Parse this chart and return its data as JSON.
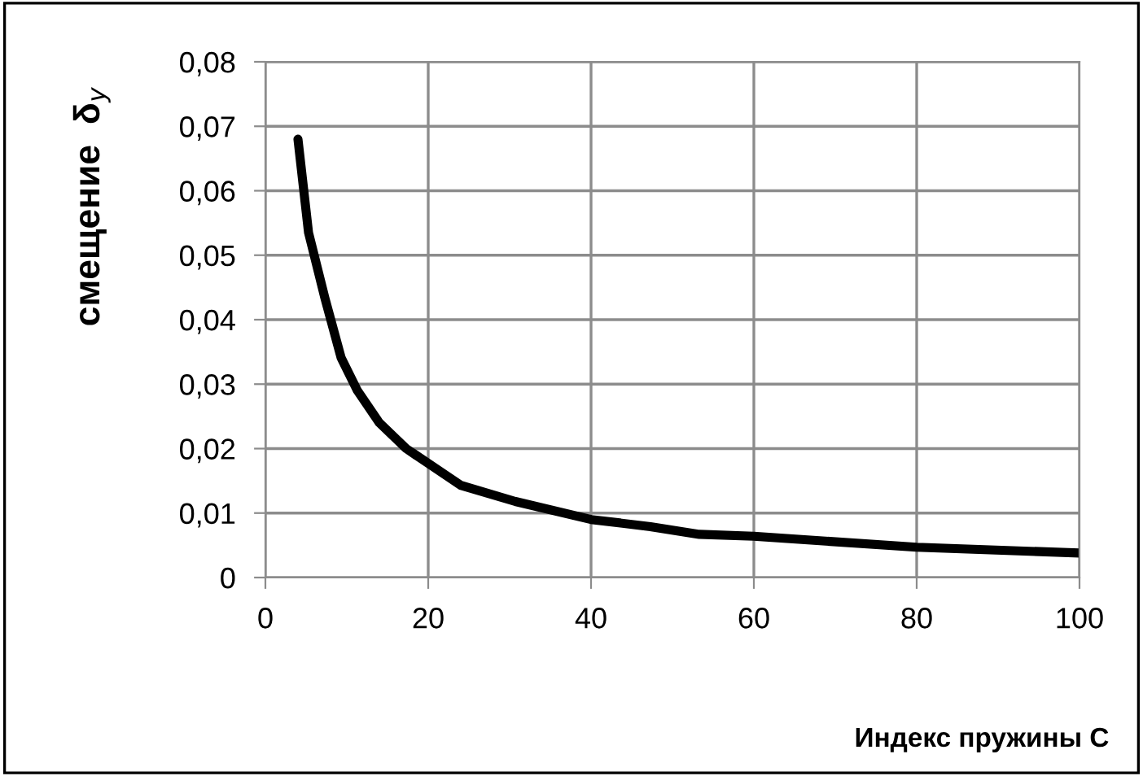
{
  "chart_data": {
    "type": "line",
    "xlabel": "Индекс пружины С",
    "ylabel": "смещение  δ$_{y}$",
    "series": [
      {
        "color": "#000000",
        "x": [
          4,
          5.3,
          7.3,
          9.3,
          11.3,
          14,
          17.3,
          20,
          24,
          30.7,
          40,
          47.3,
          53.3,
          60,
          80,
          100
        ],
        "values": [
          0.068,
          0.0535,
          0.0434,
          0.0341,
          0.029,
          0.024,
          0.02,
          0.0177,
          0.0143,
          0.0118,
          0.009,
          0.0079,
          0.0067,
          0.0064,
          0.0047,
          0.0038
        ]
      }
    ],
    "xlim": [
      0,
      100
    ],
    "xticks": [
      0,
      20,
      40,
      60,
      80,
      100
    ],
    "ylim": [
      0,
      0.08
    ],
    "yticks": [
      {
        "value": 0,
        "label": "0"
      },
      {
        "value": 0.01,
        "label": "0,01"
      },
      {
        "value": 0.02,
        "label": "0,02"
      },
      {
        "value": 0.03,
        "label": "0,03"
      },
      {
        "value": 0.04,
        "label": "0,04"
      },
      {
        "value": 0.05,
        "label": "0,05"
      },
      {
        "value": 0.06,
        "label": "0,06"
      },
      {
        "value": 0.07,
        "label": "0,07"
      },
      {
        "value": 0.08,
        "label": "0,08"
      }
    ],
    "grid": true,
    "legend": false,
    "marker": "none",
    "line_style": "solid"
  }
}
